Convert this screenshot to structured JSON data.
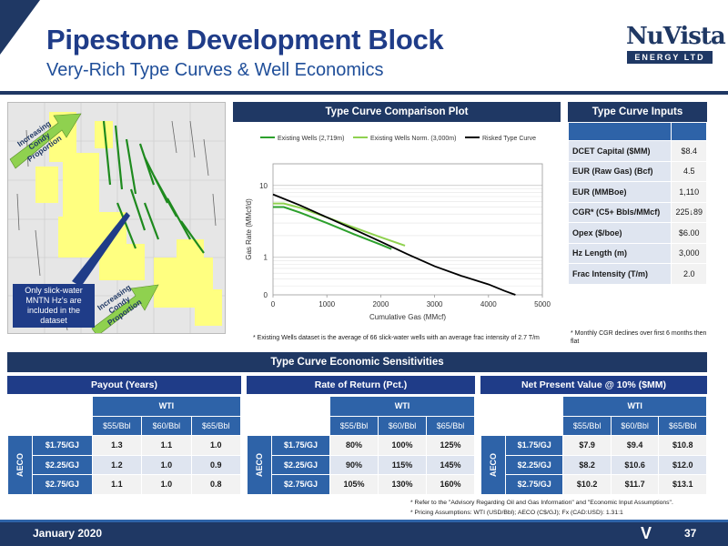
{
  "header": {
    "title": "Pipestone Development Block",
    "subtitle": "Very-Rich Type Curves & Well Economics",
    "logo_word": "NuVista",
    "logo_sub": "ENERGY LTD"
  },
  "map": {
    "arrow_top": "Increasing Condy Proportion",
    "arrow_bottom": "Increasing Condy Proportion",
    "callout": "Only slick-water MNTN Hz's are included in the dataset"
  },
  "chart_panel": {
    "header": "Type Curve Comparison Plot",
    "footnote": "* Existing Wells dataset is the average of 66 slick-water wells with an average frac intensity of 2.7 T/m"
  },
  "chart_data": {
    "type": "line",
    "xlabel": "Cumulative Gas (MMcf)",
    "ylabel": "Gas Rate (MMcf/d)",
    "xlim": [
      0,
      5000
    ],
    "ylim": [
      0.3,
      20
    ],
    "x_ticks": [
      "0",
      "1000",
      "2000",
      "3000",
      "4000",
      "5000"
    ],
    "y_ticks": [
      "0",
      "1",
      "10"
    ],
    "legend_position": "top",
    "series": [
      {
        "name": "Existing Wells (2,719m)",
        "color": "#2ca02c",
        "x": [
          0,
          200,
          500,
          1000,
          1500,
          2000,
          2200
        ],
        "y": [
          5.0,
          5.0,
          4.2,
          3.0,
          2.1,
          1.5,
          1.3
        ]
      },
      {
        "name": "Existing Wells Norm. (3,000m)",
        "color": "#8fd14f",
        "x": [
          0,
          200,
          500,
          1000,
          1500,
          2000,
          2450
        ],
        "y": [
          5.6,
          5.6,
          4.9,
          3.6,
          2.6,
          1.9,
          1.45
        ]
      },
      {
        "name": "Risked Type Curve",
        "color": "#000000",
        "x": [
          0,
          500,
          1000,
          1500,
          2000,
          2500,
          3000,
          3500,
          4000,
          4300,
          4500
        ],
        "y": [
          7.5,
          5.3,
          3.6,
          2.45,
          1.65,
          1.1,
          0.75,
          0.55,
          0.42,
          0.34,
          0.3
        ]
      }
    ]
  },
  "inputs": {
    "header": "Type Curve Inputs",
    "rows": [
      {
        "label": "DCET Capital ($MM)",
        "value": "$8.4"
      },
      {
        "label": "EUR (Raw Gas) (Bcf)",
        "value": "4.5"
      },
      {
        "label": "EUR (MMBoe)",
        "value": "1,110"
      },
      {
        "label": "CGR* (C5+ Bbls/MMcf)",
        "value": "225↓89"
      },
      {
        "label": "Opex ($/boe)",
        "value": "$6.00"
      },
      {
        "label": "Hz Length (m)",
        "value": "3,000"
      },
      {
        "label": "Frac Intensity (T/m)",
        "value": "2.0"
      }
    ],
    "note": "* Monthly CGR declines over first 6 months then flat"
  },
  "sensitivities": {
    "header": "Type Curve Economic Sensitivities",
    "wti": "WTI",
    "aeco": "AECO",
    "cols": [
      "$55/Bbl",
      "$60/Bbl",
      "$65/Bbl"
    ],
    "rows": [
      "$1.75/GJ",
      "$2.25/GJ",
      "$2.75/GJ"
    ],
    "payout": {
      "title": "Payout (Years)",
      "values": [
        [
          "1.3",
          "1.1",
          "1.0"
        ],
        [
          "1.2",
          "1.0",
          "0.9"
        ],
        [
          "1.1",
          "1.0",
          "0.8"
        ]
      ]
    },
    "ror": {
      "title": "Rate of Return (Pct.)",
      "values": [
        [
          "80%",
          "100%",
          "125%"
        ],
        [
          "90%",
          "115%",
          "145%"
        ],
        [
          "105%",
          "130%",
          "160%"
        ]
      ]
    },
    "npv": {
      "title": "Net Present Value @ 10% ($MM)",
      "values": [
        [
          "$7.9",
          "$9.4",
          "$10.8"
        ],
        [
          "$8.2",
          "$10.6",
          "$12.0"
        ],
        [
          "$10.2",
          "$11.7",
          "$13.1"
        ]
      ]
    }
  },
  "footnotes": [
    "* Refer to the \"Advisory Regarding Oil and Gas Information\" and \"Economic Input Assumptions\".",
    "* Pricing Assumptions: WTI (USD/Bbl); AECO (C$/GJ); Fx (CAD:USD): 1.31:1"
  ],
  "footer": {
    "date": "January 2020",
    "page": "37",
    "mark": "V"
  }
}
